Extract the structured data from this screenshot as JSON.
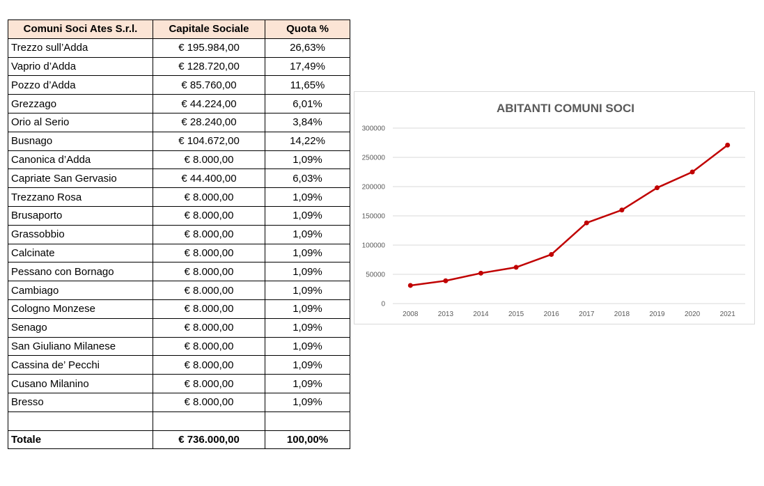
{
  "table": {
    "headers": [
      "Comuni Soci Ates S.r.l.",
      "Capitale Sociale",
      "Quota %"
    ],
    "rows": [
      {
        "comune": "Trezzo sull’Adda",
        "capitale": "€ 195.984,00",
        "quota": "26,63%"
      },
      {
        "comune": "Vaprio d’Adda",
        "capitale": "€ 128.720,00",
        "quota": "17,49%"
      },
      {
        "comune": "Pozzo d’Adda",
        "capitale": "€ 85.760,00",
        "quota": "11,65%"
      },
      {
        "comune": "Grezzago",
        "capitale": "€ 44.224,00",
        "quota": "6,01%"
      },
      {
        "comune": "Orio al Serio",
        "capitale": "€ 28.240,00",
        "quota": "3,84%"
      },
      {
        "comune": "Busnago",
        "capitale": "€ 104.672,00",
        "quota": "14,22%"
      },
      {
        "comune": "Canonica d’Adda",
        "capitale": "€ 8.000,00",
        "quota": "1,09%"
      },
      {
        "comune": "Capriate San Gervasio",
        "capitale": "€ 44.400,00",
        "quota": "6,03%"
      },
      {
        "comune": "Trezzano Rosa",
        "capitale": "€ 8.000,00",
        "quota": "1,09%"
      },
      {
        "comune": "Brusaporto",
        "capitale": "€ 8.000,00",
        "quota": "1,09%"
      },
      {
        "comune": "Grassobbio",
        "capitale": "€ 8.000,00",
        "quota": "1,09%"
      },
      {
        "comune": "Calcinate",
        "capitale": "€ 8.000,00",
        "quota": "1,09%"
      },
      {
        "comune": "Pessano con Bornago",
        "capitale": "€ 8.000,00",
        "quota": "1,09%"
      },
      {
        "comune": "Cambiago",
        "capitale": "€ 8.000,00",
        "quota": "1,09%"
      },
      {
        "comune": "Cologno Monzese",
        "capitale": "€ 8.000,00",
        "quota": "1,09%"
      },
      {
        "comune": "Senago",
        "capitale": "€ 8.000,00",
        "quota": "1,09%"
      },
      {
        "comune": "San Giuliano Milanese",
        "capitale": "€ 8.000,00",
        "quota": "1,09%"
      },
      {
        "comune": "Cassina de’ Pecchi",
        "capitale": "€ 8.000,00",
        "quota": "1,09%"
      },
      {
        "comune": "Cusano Milanino",
        "capitale": "€ 8.000,00",
        "quota": "1,09%"
      },
      {
        "comune": "Bresso",
        "capitale": "€ 8.000,00",
        "quota": "1,09%"
      }
    ],
    "total": {
      "comune": "Totale",
      "capitale": "€ 736.000,00",
      "quota": "100,00%"
    }
  },
  "chart_data": {
    "type": "line",
    "title": "ABITANTI COMUNI SOCI",
    "categories": [
      "2008",
      "2013",
      "2014",
      "2015",
      "2016",
      "2017",
      "2018",
      "2019",
      "2020",
      "2021"
    ],
    "series": [
      {
        "values": [
          31000,
          39000,
          52000,
          62000,
          84000,
          138000,
          160000,
          198000,
          225000,
          271000
        ],
        "color": "#c00000"
      }
    ],
    "ylim": [
      0,
      300000
    ],
    "yticks": [
      0,
      50000,
      100000,
      150000,
      200000,
      250000,
      300000
    ],
    "xlabel": "",
    "ylabel": "",
    "grid": true,
    "legend": "none",
    "colors": {
      "line": "#c00000",
      "grid": "#d9d9d9",
      "text": "#595959"
    }
  },
  "colors": {
    "header_fill": "#fbe4d5"
  }
}
